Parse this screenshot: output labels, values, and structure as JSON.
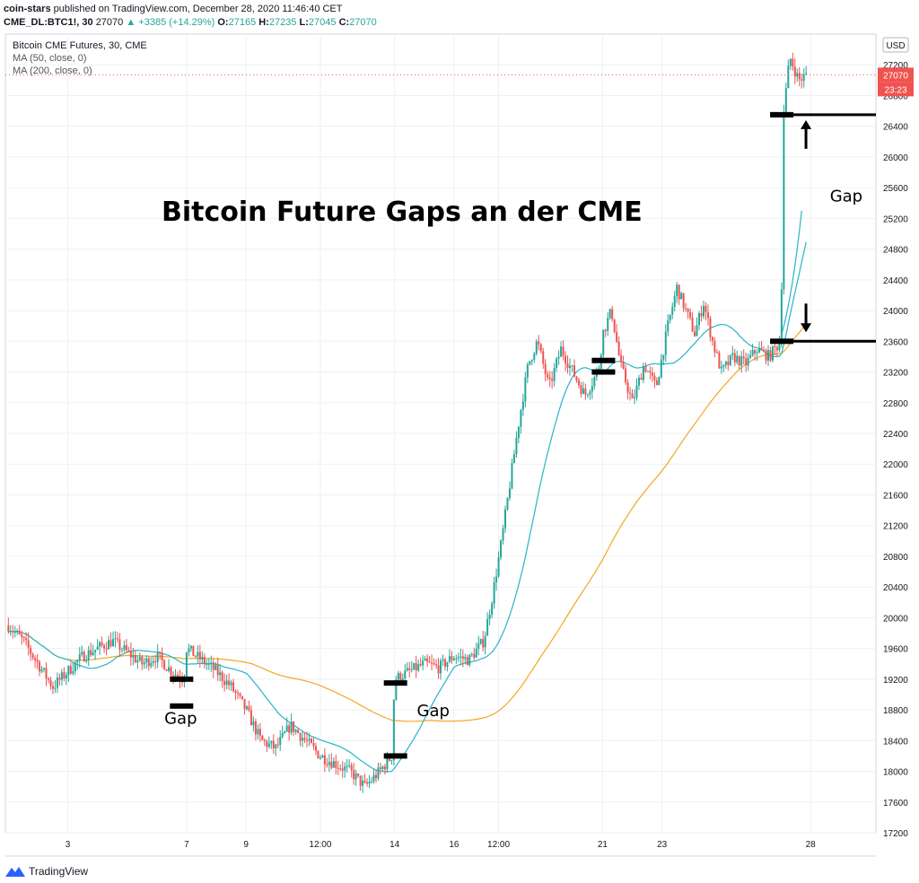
{
  "header": {
    "user": "coin-stars",
    "published": "published on TradingView.com, December 28, 2020 11:46:40 CET",
    "symbol": "CME_DL:BTC1!, 30",
    "last": "27070",
    "change": "▲ +3385 (+14.29%)",
    "open_label": "O:",
    "open": "27165",
    "high_label": "H:",
    "high": "27235",
    "low_label": "L:",
    "low": "27045",
    "close_label": "C:",
    "close": "27070"
  },
  "legend": {
    "title": "Bitcoin CME Futures, 30, CME",
    "ma50": "MA (50, close, 0)",
    "ma200": "MA (200, close, 0)"
  },
  "footer": {
    "brand": "TradingView"
  },
  "colors": {
    "up": "#26a69a",
    "down": "#ef5350",
    "ma50": "#26b5c9",
    "ma200": "#f5a623",
    "grid": "#eef0f3",
    "axis": "#131722",
    "price_tag": "#ef5350"
  },
  "chart_data": {
    "type": "candlestick",
    "title": "Bitcoin Future Gaps an der CME",
    "currency": "USD",
    "ylim": [
      17200,
      27600
    ],
    "y_ticks": [
      17200,
      17600,
      18000,
      18400,
      18800,
      19200,
      19600,
      20000,
      20400,
      20800,
      21200,
      21600,
      22000,
      22400,
      22800,
      23200,
      23600,
      24000,
      24400,
      24800,
      25200,
      25600,
      26000,
      26400,
      26800,
      27200
    ],
    "x_ticks": [
      {
        "label": "3",
        "day": 3
      },
      {
        "label": "7",
        "day": 7
      },
      {
        "label": "9",
        "day": 9
      },
      {
        "label": "12:00",
        "day": 11.5
      },
      {
        "label": "14",
        "day": 14
      },
      {
        "label": "16",
        "day": 16
      },
      {
        "label": "12:00",
        "day": 17.5
      },
      {
        "label": "21",
        "day": 21
      },
      {
        "label": "23",
        "day": 23
      },
      {
        "label": "28",
        "day": 28
      }
    ],
    "last_price": 27070,
    "countdown": "23:23",
    "price_path": [
      [
        1.0,
        19900
      ],
      [
        1.5,
        19700
      ],
      [
        2.0,
        19400
      ],
      [
        2.5,
        19100
      ],
      [
        3.0,
        19300
      ],
      [
        3.5,
        19500
      ],
      [
        4.0,
        19600
      ],
      [
        4.5,
        19700
      ],
      [
        5.0,
        19550
      ],
      [
        5.5,
        19400
      ],
      [
        6.0,
        19500
      ],
      [
        6.5,
        19300
      ],
      [
        6.9,
        19200
      ],
      [
        7.0,
        19600
      ],
      [
        7.5,
        19450
      ],
      [
        8.0,
        19300
      ],
      [
        8.5,
        19100
      ],
      [
        9.0,
        18800
      ],
      [
        9.5,
        18400
      ],
      [
        10.0,
        18300
      ],
      [
        10.5,
        18600
      ],
      [
        11.0,
        18400
      ],
      [
        11.5,
        18200
      ],
      [
        12.0,
        18100
      ],
      [
        12.5,
        18000
      ],
      [
        13.0,
        17800
      ],
      [
        13.5,
        18000
      ],
      [
        13.9,
        18200
      ],
      [
        14.0,
        19200
      ],
      [
        14.5,
        19300
      ],
      [
        15.0,
        19400
      ],
      [
        15.5,
        19350
      ],
      [
        16.0,
        19500
      ],
      [
        16.5,
        19450
      ],
      [
        17.0,
        19700
      ],
      [
        17.3,
        20300
      ],
      [
        17.6,
        21000
      ],
      [
        17.9,
        21800
      ],
      [
        18.2,
        22600
      ],
      [
        18.5,
        23300
      ],
      [
        18.8,
        23600
      ],
      [
        19.2,
        23000
      ],
      [
        19.6,
        23500
      ],
      [
        20.0,
        23200
      ],
      [
        20.4,
        22900
      ],
      [
        20.7,
        23100
      ],
      [
        20.9,
        23300
      ],
      [
        21.0,
        23700
      ],
      [
        21.3,
        24000
      ],
      [
        21.6,
        23300
      ],
      [
        22.0,
        22800
      ],
      [
        22.4,
        23300
      ],
      [
        22.8,
        23000
      ],
      [
        23.2,
        23800
      ],
      [
        23.5,
        24300
      ],
      [
        23.8,
        24000
      ],
      [
        24.1,
        23700
      ],
      [
        24.4,
        24100
      ],
      [
        24.7,
        23600
      ],
      [
        25.0,
        23200
      ],
      [
        25.4,
        23400
      ],
      [
        25.8,
        23300
      ],
      [
        26.2,
        23500
      ],
      [
        26.6,
        23400
      ],
      [
        27.0,
        23600
      ],
      [
        27.1,
        26600
      ],
      [
        27.3,
        27300
      ],
      [
        27.6,
        27000
      ],
      [
        27.9,
        27070
      ]
    ],
    "gaps": [
      {
        "label": "Gap",
        "day": 6.8,
        "from": 19200,
        "to": 18850
      },
      {
        "label": "Gap",
        "day": 14.0,
        "from": 18200,
        "to": 19150
      },
      {
        "label": "",
        "day": 21.0,
        "from": 23350,
        "to": 23200
      },
      {
        "label": "Gap",
        "day": 27.0,
        "from": 23600,
        "to": 26550
      }
    ],
    "gap_labels": [
      "Gap",
      "Gap",
      "Gap"
    ]
  }
}
